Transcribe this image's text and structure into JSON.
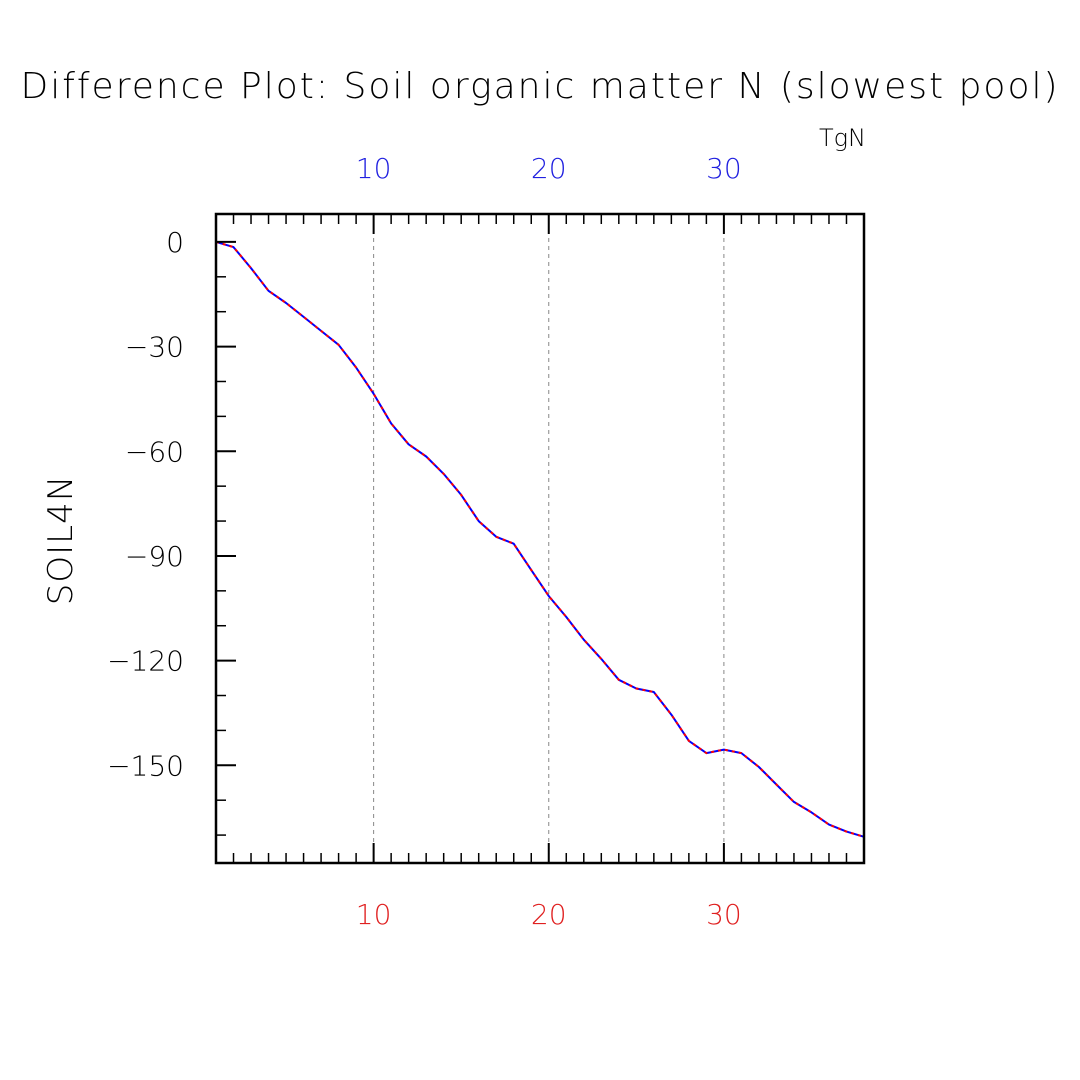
{
  "chart_data": {
    "type": "line",
    "title": "Difference Plot: Soil organic matter N (slowest pool)",
    "units": "TgN",
    "ylabel": "SOIL4N",
    "xlabel": "",
    "xlim": [
      1,
      38
    ],
    "ylim": [
      -178,
      8
    ],
    "x_ticks_major": [
      10,
      20,
      30
    ],
    "x_ticks_minor": [
      2,
      3,
      4,
      5,
      6,
      7,
      8,
      9,
      11,
      12,
      13,
      14,
      15,
      16,
      17,
      18,
      19,
      21,
      22,
      23,
      24,
      25,
      26,
      27,
      28,
      29,
      31,
      32,
      33,
      34,
      35,
      36,
      37,
      38
    ],
    "y_ticks_major": [
      0,
      -30,
      -60,
      -90,
      -120,
      -150
    ],
    "y_ticks_minor": [
      -10,
      -20,
      -40,
      -50,
      -70,
      -80,
      -100,
      -110,
      -130,
      -140,
      -160,
      -170
    ],
    "y_tick_labels": [
      "0",
      "−30",
      "−60",
      "−90",
      "−120",
      "−150"
    ],
    "top_axis_tick_labels": [
      "10",
      "20",
      "30"
    ],
    "bottom_axis_tick_labels": [
      "10",
      "20",
      "30"
    ],
    "grid": "vertical dashed at major x ticks",
    "colors": {
      "top_axis_labels": "#2020e0",
      "bottom_axis_labels": "#e02020",
      "series_solid": "#0000ff",
      "series_dashed": "#ff0000",
      "grid": "#888888",
      "frame": "#000000"
    },
    "series": [
      {
        "x": [
          1,
          2,
          3,
          4,
          5,
          6,
          7,
          8,
          9,
          10,
          11,
          12,
          13,
          14,
          15,
          16,
          17,
          18,
          19,
          20,
          21,
          22,
          23,
          24,
          25,
          26,
          27,
          28,
          29,
          30,
          31,
          32,
          33,
          34,
          35,
          36,
          37,
          38
        ],
        "values": [
          0,
          -1.5,
          -7.5,
          -14,
          -17.5,
          -21.5,
          -25.5,
          -29.5,
          -36,
          -43.5,
          -52,
          -58,
          -61.5,
          -66.5,
          -72.5,
          -80,
          -84.5,
          -86.5,
          -94,
          -101.5,
          -107.5,
          -114,
          -119.5,
          -125.5,
          -128,
          -129,
          -135.5,
          -143,
          -146.5,
          -145.5,
          -146.5,
          -150.5,
          -155.5,
          -160.5,
          -163.5,
          -167,
          -169,
          -170.5
        ]
      }
    ]
  }
}
